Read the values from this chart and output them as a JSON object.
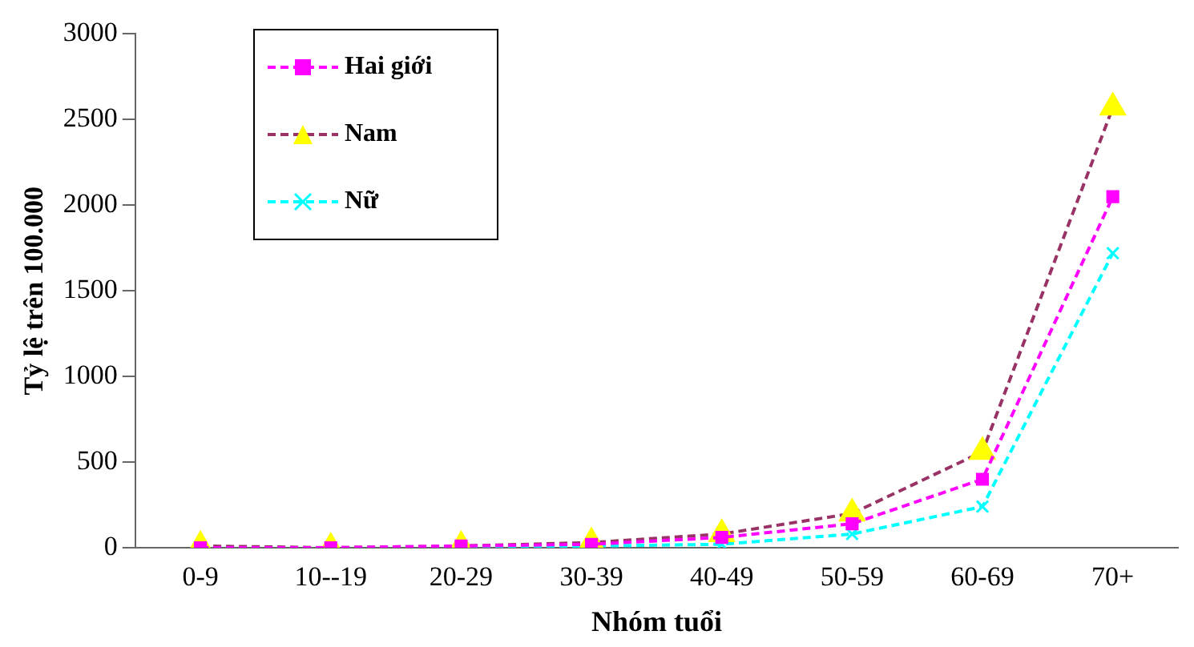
{
  "chart_data": {
    "type": "line",
    "xlabel": "Nhóm tuổi",
    "ylabel": "Tỷ lệ trên 100.000",
    "categories": [
      "0-9",
      "10--19",
      "20-29",
      "30-39",
      "40-49",
      "50-59",
      "60-69",
      "70+"
    ],
    "series": [
      {
        "name": "Hai giới",
        "color": "#ff00ff",
        "marker": "square",
        "values": [
          0,
          0,
          10,
          20,
          60,
          140,
          400,
          2050
        ]
      },
      {
        "name": "Nam",
        "color": "#993366",
        "colors": [
          "#ffff00",
          "#ffff00",
          "#ffff00",
          "#ffff00",
          "#ffff00",
          "#ffff00",
          "#ffff00",
          "#ffff00"
        ],
        "marker": "triangle",
        "values": [
          10,
          0,
          10,
          30,
          80,
          200,
          560,
          2570
        ]
      },
      {
        "name": "Nữ",
        "color": "#00ffff",
        "marker": "cross",
        "values": [
          0,
          0,
          0,
          10,
          20,
          80,
          240,
          1720
        ]
      }
    ],
    "ylim": [
      0,
      3000
    ],
    "yticks": [
      0,
      500,
      1000,
      1500,
      2000,
      2500,
      3000
    ],
    "grid": false,
    "legend": "top left",
    "line_style": "dashed"
  }
}
